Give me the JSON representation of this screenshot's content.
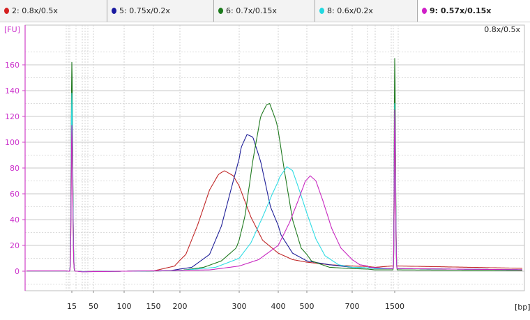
{
  "legend": [
    {
      "label": "2: 0.8x/0.5x",
      "color": "#d42020",
      "bold": false,
      "selected": false
    },
    {
      "label": "5: 0.75x/0.2x",
      "color": "#1a1aa0",
      "bold": false,
      "selected": false
    },
    {
      "label": "6: 0.7x/0.15x",
      "color": "#1c7a1c",
      "bold": false,
      "selected": false
    },
    {
      "label": "8: 0.6x/0.2x",
      "color": "#22d8e0",
      "bold": false,
      "selected": false
    },
    {
      "label": "9: 0.57x/0.15x",
      "color": "#d020c8",
      "bold": true,
      "selected": true
    }
  ],
  "chart_data": {
    "type": "line",
    "title": "0.8x/0.5x",
    "ylabel": "[FU]",
    "xlabel": "[bp]",
    "ylim": [
      -15,
      180
    ],
    "y_ticks": [
      0,
      20,
      40,
      60,
      80,
      100,
      120,
      140,
      160
    ],
    "x_ticks": [
      "15",
      "50",
      "100",
      "150",
      "200",
      "300",
      "400",
      "500",
      "700",
      "1500"
    ],
    "x_scale": "nonlinear (electropherogram size ladder)",
    "markers_bp": [
      15,
      1500
    ],
    "series": [
      {
        "name": "2: 0.8x/0.5x",
        "color": "#c02828",
        "marker_peaks": [
          112,
          110
        ],
        "baseline_after_upper": 4,
        "peak": {
          "bp": 275,
          "fu": 78
        },
        "points": [
          [
            100,
            0
          ],
          [
            150,
            0.2
          ],
          [
            190,
            4
          ],
          [
            210,
            13
          ],
          [
            230,
            36
          ],
          [
            250,
            63
          ],
          [
            265,
            75
          ],
          [
            275,
            78
          ],
          [
            290,
            74
          ],
          [
            310,
            58
          ],
          [
            330,
            42
          ],
          [
            360,
            24
          ],
          [
            400,
            14
          ],
          [
            450,
            9
          ],
          [
            500,
            7
          ],
          [
            600,
            5
          ],
          [
            700,
            4
          ],
          [
            1000,
            3
          ],
          [
            1400,
            4
          ]
        ]
      },
      {
        "name": "5: 0.75x/0.2x",
        "color": "#202098",
        "marker_peaks": [
          140,
          128
        ],
        "baseline_after_upper": 2,
        "peak": {
          "bp": 320,
          "fu": 106
        },
        "points": [
          [
            100,
            0
          ],
          [
            180,
            0.3
          ],
          [
            220,
            3
          ],
          [
            250,
            13
          ],
          [
            270,
            35
          ],
          [
            290,
            70
          ],
          [
            305,
            96
          ],
          [
            320,
            106
          ],
          [
            335,
            104
          ],
          [
            355,
            85
          ],
          [
            380,
            50
          ],
          [
            410,
            28
          ],
          [
            450,
            14
          ],
          [
            500,
            8
          ],
          [
            600,
            5
          ],
          [
            700,
            3
          ],
          [
            1000,
            2
          ],
          [
            1400,
            2
          ]
        ]
      },
      {
        "name": "6: 0.7x/0.15x",
        "color": "#207a20",
        "marker_peaks": [
          162,
          165
        ],
        "baseline_after_upper": 1,
        "peak": {
          "bp": 378,
          "fu": 130
        },
        "points": [
          [
            100,
            0
          ],
          [
            200,
            0.5
          ],
          [
            240,
            3
          ],
          [
            270,
            8
          ],
          [
            295,
            18
          ],
          [
            315,
            43
          ],
          [
            335,
            86
          ],
          [
            355,
            120
          ],
          [
            370,
            129
          ],
          [
            378,
            130
          ],
          [
            395,
            116
          ],
          [
            420,
            80
          ],
          [
            450,
            40
          ],
          [
            480,
            18
          ],
          [
            520,
            8
          ],
          [
            600,
            3
          ],
          [
            700,
            2
          ],
          [
            1000,
            1
          ],
          [
            1400,
            1
          ]
        ]
      },
      {
        "name": "8: 0.6x/0.2x",
        "color": "#30dce4",
        "marker_peaks": [
          138,
          130
        ],
        "baseline_after_upper": 2,
        "peak": {
          "bp": 430,
          "fu": 81
        },
        "points": [
          [
            100,
            0
          ],
          [
            200,
            0.5
          ],
          [
            260,
            3
          ],
          [
            300,
            10
          ],
          [
            330,
            22
          ],
          [
            360,
            42
          ],
          [
            385,
            60
          ],
          [
            405,
            73
          ],
          [
            430,
            81
          ],
          [
            450,
            78
          ],
          [
            475,
            62
          ],
          [
            500,
            45
          ],
          [
            540,
            25
          ],
          [
            580,
            12
          ],
          [
            640,
            5
          ],
          [
            700,
            3
          ],
          [
            1000,
            2
          ],
          [
            1400,
            2
          ]
        ]
      },
      {
        "name": "9: 0.57x/0.15x",
        "color": "#c828c0",
        "marker_peaks": [
          113,
          125
        ],
        "baseline_after_upper": 2,
        "peak": {
          "bp": 515,
          "fu": 74
        },
        "points": [
          [
            100,
            0
          ],
          [
            250,
            1
          ],
          [
            300,
            4
          ],
          [
            350,
            9
          ],
          [
            400,
            20
          ],
          [
            440,
            38
          ],
          [
            470,
            55
          ],
          [
            495,
            70
          ],
          [
            515,
            74
          ],
          [
            540,
            70
          ],
          [
            570,
            55
          ],
          [
            610,
            33
          ],
          [
            650,
            18
          ],
          [
            700,
            9
          ],
          [
            750,
            5
          ],
          [
            850,
            3
          ],
          [
            1400,
            2
          ]
        ]
      }
    ]
  }
}
